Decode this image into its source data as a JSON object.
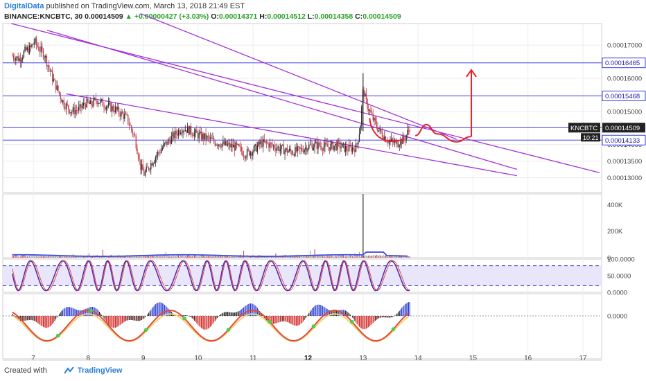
{
  "header": {
    "author": "DigitalData",
    "published_text": "published on TradingView.com, March 13, 2018 21:49 EST",
    "symbol": "BINANCE:KNCBTC, 30",
    "last": "0.00014509",
    "change": "+0.00000427 (+3.03%)",
    "o_label": "O:",
    "o": "0.00014371",
    "h_label": "H:",
    "h": "0.00014512",
    "l_label": "L:",
    "l": "0.00014358",
    "c_label": "C:",
    "c": "0.00014509"
  },
  "footer": {
    "created_with": "Created with",
    "brand": "TradingView"
  },
  "colors": {
    "up": "#2e2e2e",
    "down": "#c2404d",
    "trend": "#a52fd6",
    "hline": "#3a3ae6",
    "arrow": "#e8202a",
    "volume": "#3c4ee0",
    "stoch": "#5b2aa8",
    "grid": "#ececec"
  },
  "chart_data": [
    {
      "type": "candlestick",
      "x_ticks": [
        "7",
        "8",
        "9",
        "10",
        "11",
        "12",
        "13",
        "14",
        "15",
        "16",
        "17"
      ],
      "y_ticks": [
        "0.00017000",
        "0.00016000",
        "0.00015000",
        "0.00014000",
        "0.00013500",
        "0.00013000"
      ],
      "ylim": [
        0.0001255,
        0.0001765
      ],
      "price_label": "KNCBTC",
      "price_value": "0.00014509",
      "countdown": "10:21",
      "horizontal_levels": [
        {
          "value": 0.00016465,
          "label": "0.00016465"
        },
        {
          "value": 0.00015468,
          "label": "0.00015468"
        },
        {
          "value": 0.00014509,
          "label": ""
        },
        {
          "value": 0.00014133,
          "label": "0.00014133"
        }
      ],
      "trendlines": [
        {
          "from": [
            6.6,
            0.0001765
          ],
          "to": [
            17.3,
            0.0001315
          ]
        },
        {
          "from": [
            7.25,
            0.0001745
          ],
          "to": [
            15.8,
            0.0001325
          ]
        },
        {
          "from": [
            7.6,
            0.0001553
          ],
          "to": [
            15.8,
            0.0001306
          ]
        },
        {
          "from": [
            8.95,
            0.0001795
          ],
          "to": [
            14.7,
            0.0001416
          ]
        }
      ],
      "close_path": [
        [
          6.62,
          0.0001668
        ],
        [
          6.75,
          0.0001658
        ],
        [
          6.85,
          0.0001682
        ],
        [
          6.95,
          0.000169
        ],
        [
          7.02,
          0.0001712
        ],
        [
          7.1,
          0.000169
        ],
        [
          7.2,
          0.0001672
        ],
        [
          7.35,
          0.00016
        ],
        [
          7.45,
          0.0001562
        ],
        [
          7.55,
          0.0001525
        ],
        [
          7.7,
          0.00015
        ],
        [
          7.85,
          0.0001508
        ],
        [
          7.95,
          0.0001525
        ],
        [
          8.05,
          0.000152
        ],
        [
          8.15,
          0.0001535
        ],
        [
          8.3,
          0.000152
        ],
        [
          8.5,
          0.0001505
        ],
        [
          8.7,
          0.000148
        ],
        [
          8.85,
          0.000142
        ],
        [
          8.95,
          0.0001335
        ],
        [
          9.02,
          0.000131
        ],
        [
          9.12,
          0.0001338
        ],
        [
          9.25,
          0.000137
        ],
        [
          9.4,
          0.00014
        ],
        [
          9.55,
          0.0001425
        ],
        [
          9.7,
          0.000145
        ],
        [
          9.85,
          0.0001442
        ],
        [
          10.0,
          0.0001428
        ],
        [
          10.15,
          0.000142
        ],
        [
          10.3,
          0.0001408
        ],
        [
          10.5,
          0.0001398
        ],
        [
          10.7,
          0.0001392
        ],
        [
          10.85,
          0.0001372
        ],
        [
          11.0,
          0.0001382
        ],
        [
          11.15,
          0.0001405
        ],
        [
          11.3,
          0.00014
        ],
        [
          11.5,
          0.0001387
        ],
        [
          11.7,
          0.0001378
        ],
        [
          11.85,
          0.0001382
        ],
        [
          12.0,
          0.0001395
        ],
        [
          12.15,
          0.0001398
        ],
        [
          12.35,
          0.0001393
        ],
        [
          12.55,
          0.0001398
        ],
        [
          12.7,
          0.0001386
        ],
        [
          12.88,
          0.0001392
        ],
        [
          12.95,
          0.0001455
        ],
        [
          13.0,
          0.0001568
        ],
        [
          13.05,
          0.000153
        ],
        [
          13.12,
          0.00015
        ],
        [
          13.2,
          0.000147
        ],
        [
          13.3,
          0.000144
        ],
        [
          13.45,
          0.0001412
        ],
        [
          13.6,
          0.0001403
        ],
        [
          13.75,
          0.0001416
        ],
        [
          13.85,
          0.0001451
        ]
      ],
      "projection": {
        "hump": [
          [
            13.95,
            0.0001427
          ],
          [
            14.15,
            0.000146
          ],
          [
            14.35,
            0.0001432
          ],
          [
            14.7,
            0.0001408
          ],
          [
            14.97,
            0.0001424
          ]
        ],
        "arrow": [
          [
            14.97,
            0.0001424
          ],
          [
            14.97,
            0.0001625
          ]
        ]
      }
    },
    {
      "type": "bar",
      "name": "volume",
      "y_ticks": [
        "400K",
        "200K",
        "0"
      ],
      "ylim": [
        0,
        480000
      ],
      "spike": {
        "x": 13.0,
        "value": 480000
      }
    },
    {
      "type": "line",
      "name": "stochastic",
      "y_ticks": [
        "100.0000",
        "50.0000",
        "0.0000"
      ],
      "ylim": [
        0,
        100
      ],
      "bands": [
        80,
        20
      ]
    },
    {
      "type": "histogram",
      "name": "momentum",
      "y_ticks": [
        "0.0000"
      ],
      "zero": 0
    }
  ]
}
